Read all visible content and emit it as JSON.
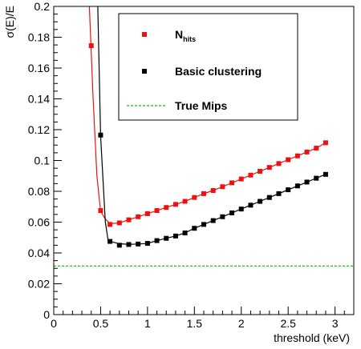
{
  "chart_data": {
    "type": "scatter",
    "xlabel": "threshold (keV)",
    "ylabel": "σ(E)/E",
    "xlim": [
      0,
      3.2
    ],
    "ylim": [
      0,
      0.2
    ],
    "x_ticks": [
      "0",
      "0.5",
      "1",
      "1.5",
      "2",
      "2.5",
      "3"
    ],
    "y_ticks": [
      "0",
      "0.02",
      "0.04",
      "0.06",
      "0.08",
      "0.1",
      "0.12",
      "0.14",
      "0.16",
      "0.18",
      "0.2"
    ],
    "x_tick_values": [
      0,
      0.5,
      1,
      1.5,
      2,
      2.5,
      3
    ],
    "y_tick_values": [
      0,
      0.02,
      0.04,
      0.06,
      0.08,
      0.1,
      0.12,
      0.14,
      0.16,
      0.18,
      0.2
    ],
    "legend_position": "top-right",
    "series": [
      {
        "name_main": "N",
        "name_sub": "hits",
        "color": "#ee1111",
        "marker": "square",
        "curve_x": [
          0.35,
          0.38,
          0.42,
          0.46,
          0.5,
          0.55,
          0.6,
          0.7
        ],
        "curve_y": [
          0.35,
          0.2,
          0.14,
          0.09,
          0.067,
          0.062,
          0.059,
          0.0595
        ],
        "x": [
          0.4,
          0.5,
          0.6,
          0.7,
          0.8,
          0.9,
          1.0,
          1.1,
          1.2,
          1.3,
          1.4,
          1.5,
          1.6,
          1.7,
          1.8,
          1.9,
          2.0,
          2.1,
          2.2,
          2.3,
          2.4,
          2.5,
          2.6,
          2.7,
          2.8,
          2.9
        ],
        "y": [
          0.1745,
          0.0675,
          0.0585,
          0.0595,
          0.0615,
          0.0635,
          0.0655,
          0.0675,
          0.0695,
          0.0715,
          0.0735,
          0.076,
          0.0785,
          0.0805,
          0.083,
          0.0855,
          0.088,
          0.0905,
          0.093,
          0.0955,
          0.098,
          0.1005,
          0.103,
          0.1055,
          0.108,
          0.1115
        ]
      },
      {
        "name": "Basic clustering",
        "color": "#000000",
        "marker": "square",
        "curve_x": [
          0.45,
          0.47,
          0.5,
          0.55,
          0.58,
          0.6,
          0.7
        ],
        "curve_y": [
          0.35,
          0.2,
          0.116,
          0.06,
          0.048,
          0.0475,
          0.046
        ],
        "x": [
          0.5,
          0.6,
          0.7,
          0.8,
          0.9,
          1.0,
          1.1,
          1.2,
          1.3,
          1.4,
          1.5,
          1.6,
          1.7,
          1.8,
          1.9,
          2.0,
          2.1,
          2.2,
          2.3,
          2.4,
          2.5,
          2.6,
          2.7,
          2.8,
          2.9
        ],
        "y": [
          0.1165,
          0.0475,
          0.045,
          0.0455,
          0.0458,
          0.0462,
          0.048,
          0.0495,
          0.051,
          0.053,
          0.056,
          0.0585,
          0.061,
          0.0635,
          0.066,
          0.0685,
          0.071,
          0.0735,
          0.076,
          0.0785,
          0.081,
          0.0835,
          0.086,
          0.0885,
          0.091
        ]
      },
      {
        "name": "True Mips",
        "color": "#33cc33",
        "style": "dashed-line",
        "y_constant": 0.0315
      }
    ]
  }
}
